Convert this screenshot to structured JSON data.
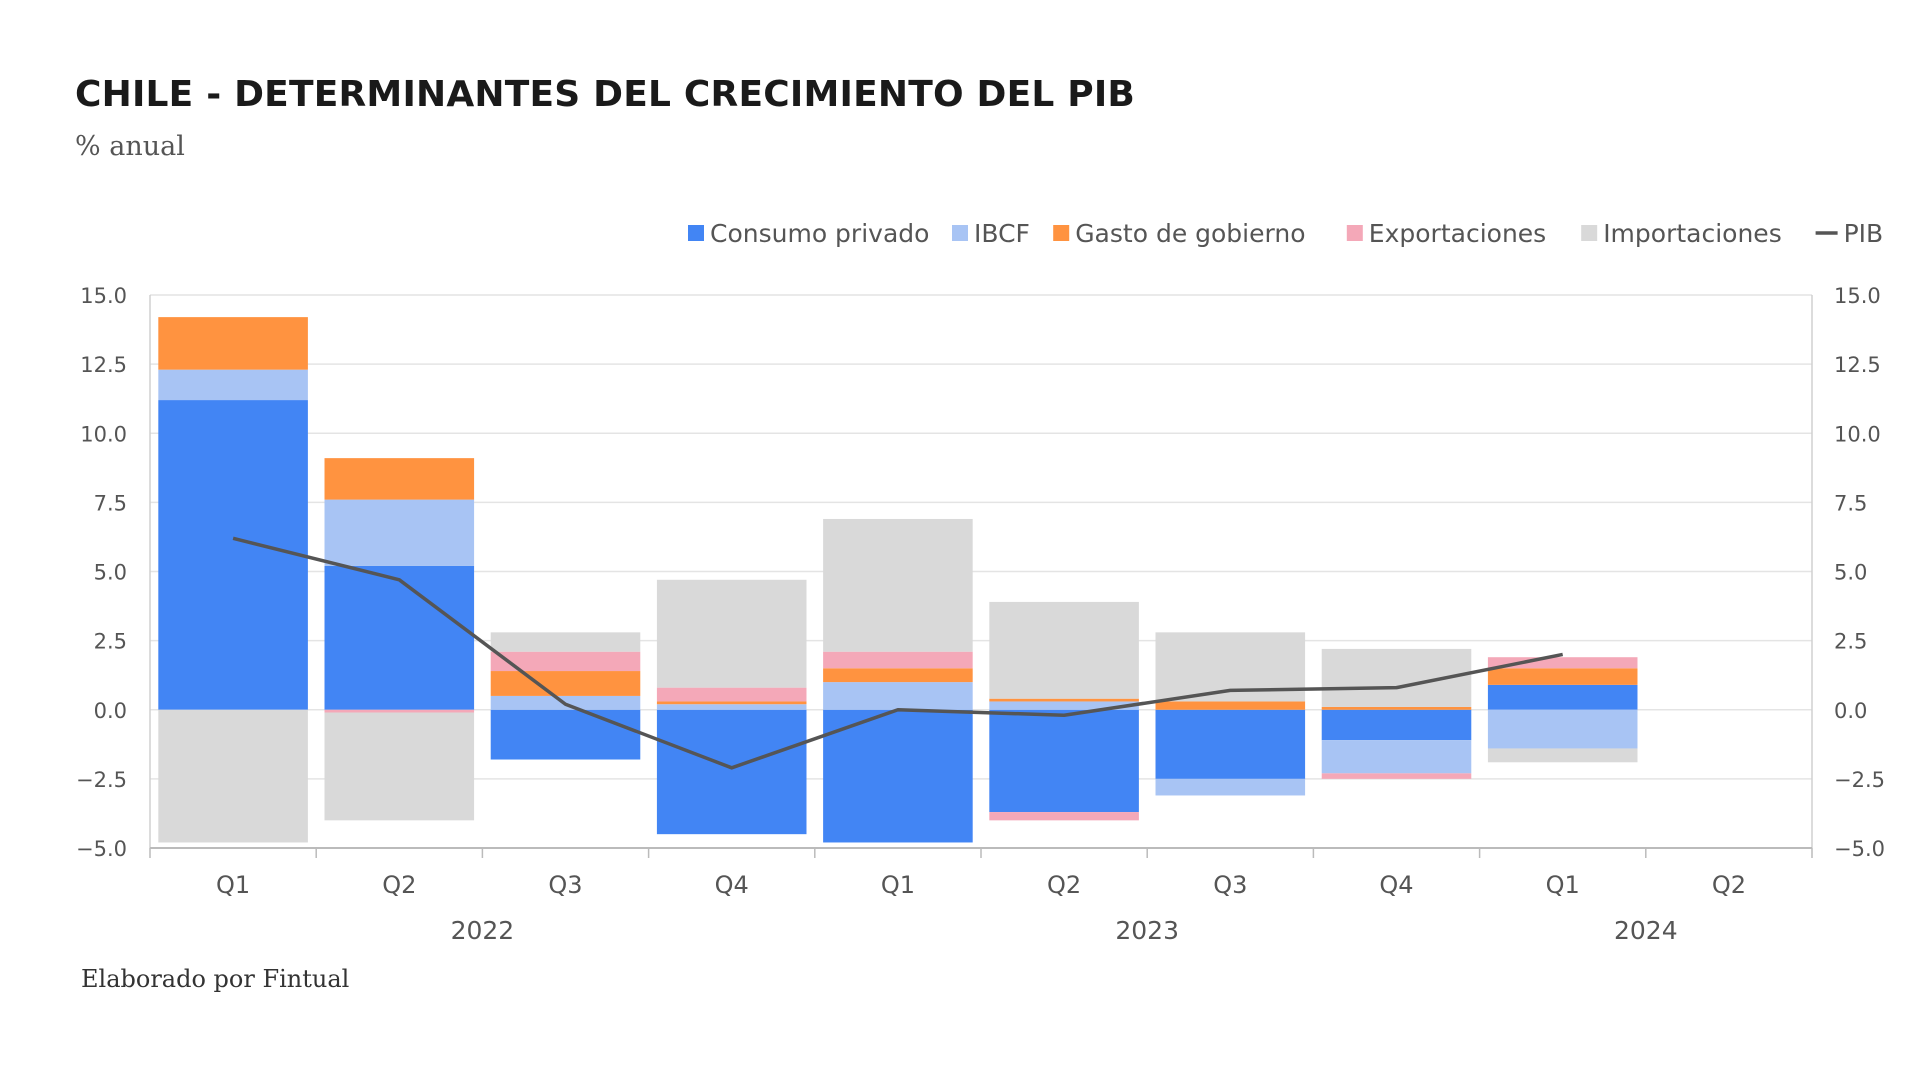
{
  "title": "CHILE - DETERMINANTES DEL CRECIMIENTO DEL PIB",
  "subtitle": "% anual",
  "source": "Elaborado por Fintual",
  "chart_data": {
    "type": "bar",
    "stacked": true,
    "categories": [
      "Q1",
      "Q2",
      "Q3",
      "Q4",
      "Q1",
      "Q2",
      "Q3",
      "Q4",
      "Q1",
      "Q2"
    ],
    "year_groups": [
      {
        "label": "2022",
        "start": 0,
        "end": 3
      },
      {
        "label": "2023",
        "start": 4,
        "end": 7
      },
      {
        "label": "2024",
        "start": 8,
        "end": 9
      }
    ],
    "ylim": [
      -5,
      15
    ],
    "yticks": [
      -5,
      -2.5,
      0,
      2.5,
      5,
      7.5,
      10,
      12.5,
      15
    ],
    "ytick_labels": [
      "−5.0",
      "−2.5",
      "0.0",
      "2.5",
      "5.0",
      "7.5",
      "10.0",
      "12.5",
      "15.0"
    ],
    "legend_position": "top-right",
    "series": [
      {
        "name": "Consumo privado",
        "color": "#4285f4",
        "values": [
          11.2,
          5.2,
          -1.8,
          -4.5,
          -4.8,
          -3.7,
          -2.5,
          -1.1,
          0.9,
          null
        ]
      },
      {
        "name": "IBCF",
        "color": "#a8c4f4",
        "values": [
          1.1,
          2.4,
          0.5,
          0.2,
          1.0,
          0.3,
          -0.6,
          -1.2,
          -1.4,
          null
        ]
      },
      {
        "name": "Gasto de gobierno",
        "color": "#ff9340",
        "values": [
          1.9,
          1.5,
          0.9,
          0.1,
          0.5,
          0.1,
          0.3,
          0.1,
          0.6,
          null
        ]
      },
      {
        "name": "Exportaciones",
        "color": "#f4a8b8",
        "values": [
          0,
          -0.1,
          0.7,
          0.5,
          0.6,
          -0.3,
          0,
          -0.2,
          0.4,
          null
        ]
      },
      {
        "name": "Importaciones",
        "color": "#d9d9d9",
        "values": [
          -4.8,
          -3.9,
          0.7,
          3.9,
          4.8,
          3.5,
          2.5,
          2.1,
          -0.5,
          null
        ]
      }
    ],
    "line": {
      "name": "PIB",
      "color": "#555555",
      "values": [
        6.2,
        4.7,
        0.2,
        -2.1,
        0.0,
        -0.2,
        0.7,
        0.8,
        2.0,
        null
      ]
    }
  }
}
